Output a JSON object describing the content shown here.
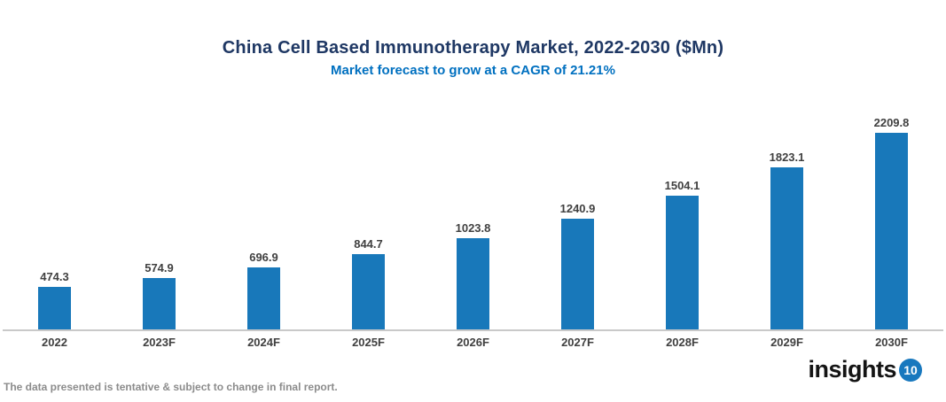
{
  "header": {
    "title": "China Cell Based Immunotherapy Market, 2022-2030 ($Mn)",
    "subtitle": "Market forecast to grow at a CAGR of 21.21%",
    "title_color": "#1F3864",
    "subtitle_color": "#0070C0"
  },
  "chart_data": {
    "type": "bar",
    "title": "China Cell Based Immunotherapy Market, 2022-2030 ($Mn)",
    "subtitle": "Market forecast to grow at a CAGR of 21.21%",
    "categories": [
      "2022",
      "2023F",
      "2024F",
      "2025F",
      "2026F",
      "2027F",
      "2028F",
      "2029F",
      "2030F"
    ],
    "values": [
      474.3,
      574.9,
      696.9,
      844.7,
      1023.8,
      1240.9,
      1504.1,
      1823.1,
      2209.8
    ],
    "value_labels": [
      "474.3",
      "574.9",
      "696.9",
      "844.7",
      "1023.8",
      "1240.9",
      "1504.1",
      "1823.1",
      "2209.8"
    ],
    "unit": "$Mn",
    "cagr": "21.21%",
    "ylim": [
      0,
      2300
    ],
    "grid": false,
    "legend": false,
    "y_axis_shown": false,
    "bar_color": "#1878BA",
    "label_color": "#404040",
    "axis_label_color": "#404040",
    "axis_line_color": "#C9C9C9"
  },
  "footer": {
    "note": "The data presented is tentative & subject to change in final report.",
    "note_color": "#8C8C8C"
  },
  "logo": {
    "text": "insights",
    "badge": "10",
    "text_color": "#141414",
    "badge_color": "#1878BE"
  }
}
